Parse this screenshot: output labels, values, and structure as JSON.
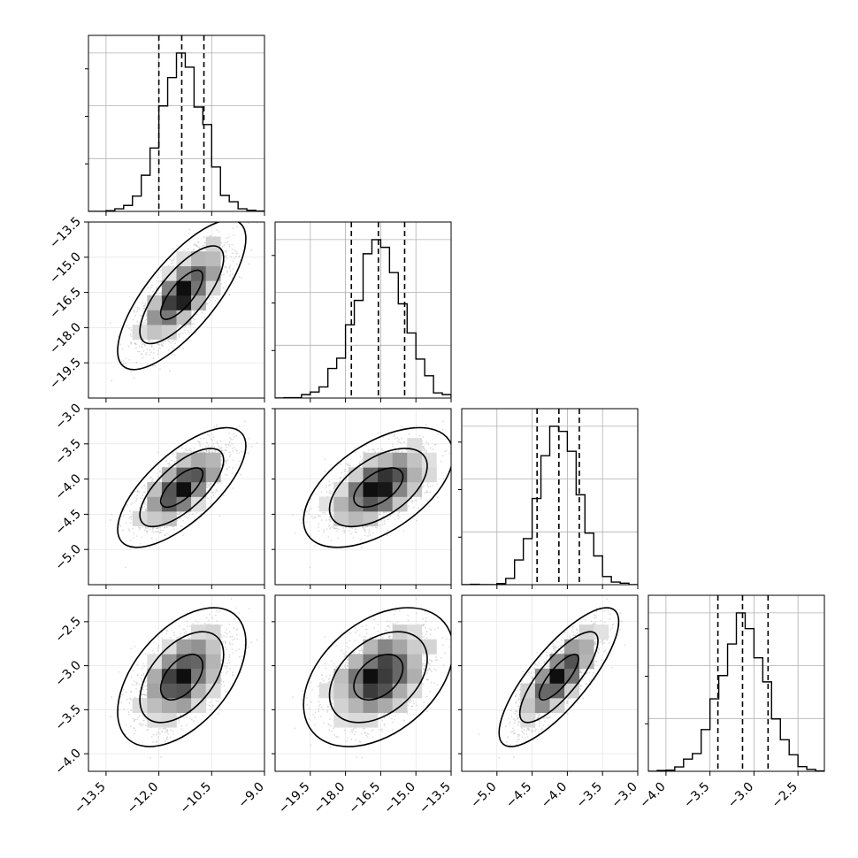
{
  "chart_data": {
    "type": "corner",
    "title": "",
    "n_params": 4,
    "labels": [
      "",
      "",
      "",
      ""
    ],
    "colors": {
      "background": "#ffffff",
      "line": "#000000",
      "grid": "#b0b0b0",
      "scatter": "#bfbfbf"
    },
    "params": [
      {
        "index": 0,
        "range": [
          -14.0,
          -9.0
        ],
        "ticks": [
          -13.5,
          -12.0,
          -10.5,
          -9.0
        ],
        "tick_labels": [
          "−13.5",
          "−12.0",
          "−10.5",
          "−9.0"
        ],
        "mean": -11.35,
        "sd": 0.6,
        "quantiles": [
          -12.0,
          -11.35,
          -10.72
        ]
      },
      {
        "index": 1,
        "range": [
          -21.0,
          -13.5
        ],
        "ticks": [
          -19.5,
          -18.0,
          -16.5,
          -15.0,
          -13.5
        ],
        "tick_labels": [
          "−19.5",
          "−18.0",
          "−16.5",
          "−15.0",
          "−13.5"
        ],
        "mean": -16.6,
        "sd": 1.05,
        "quantiles": [
          -17.75,
          -16.6,
          -15.48
        ]
      },
      {
        "index": 2,
        "range": [
          -5.5,
          -3.0
        ],
        "ticks": [
          -5.0,
          -4.5,
          -4.0,
          -3.5,
          -3.0
        ],
        "tick_labels": [
          "−5.0",
          "−4.5",
          "−4.0",
          "−3.5",
          "−3.0"
        ],
        "mean": -4.12,
        "sd": 0.28,
        "quantiles": [
          -4.43,
          -4.12,
          -3.83
        ]
      },
      {
        "index": 3,
        "range": [
          -4.2,
          -2.2
        ],
        "ticks": [
          -4.0,
          -3.5,
          -3.0,
          -2.5
        ],
        "tick_labels": [
          "−4.0",
          "−3.5",
          "−3.0",
          "−2.5"
        ],
        "mean": -3.13,
        "sd": 0.26,
        "quantiles": [
          -3.41,
          -3.13,
          -2.84
        ]
      }
    ],
    "correlations": [
      [
        1.0,
        0.75,
        0.7,
        0.5
      ],
      [
        0.75,
        1.0,
        0.55,
        0.4
      ],
      [
        0.7,
        0.55,
        1.0,
        0.8
      ],
      [
        0.5,
        0.4,
        0.8,
        1.0
      ]
    ],
    "histogram_bins": 20,
    "contour_levels": [
      0.39,
      0.86,
      0.99
    ],
    "grid": true
  }
}
